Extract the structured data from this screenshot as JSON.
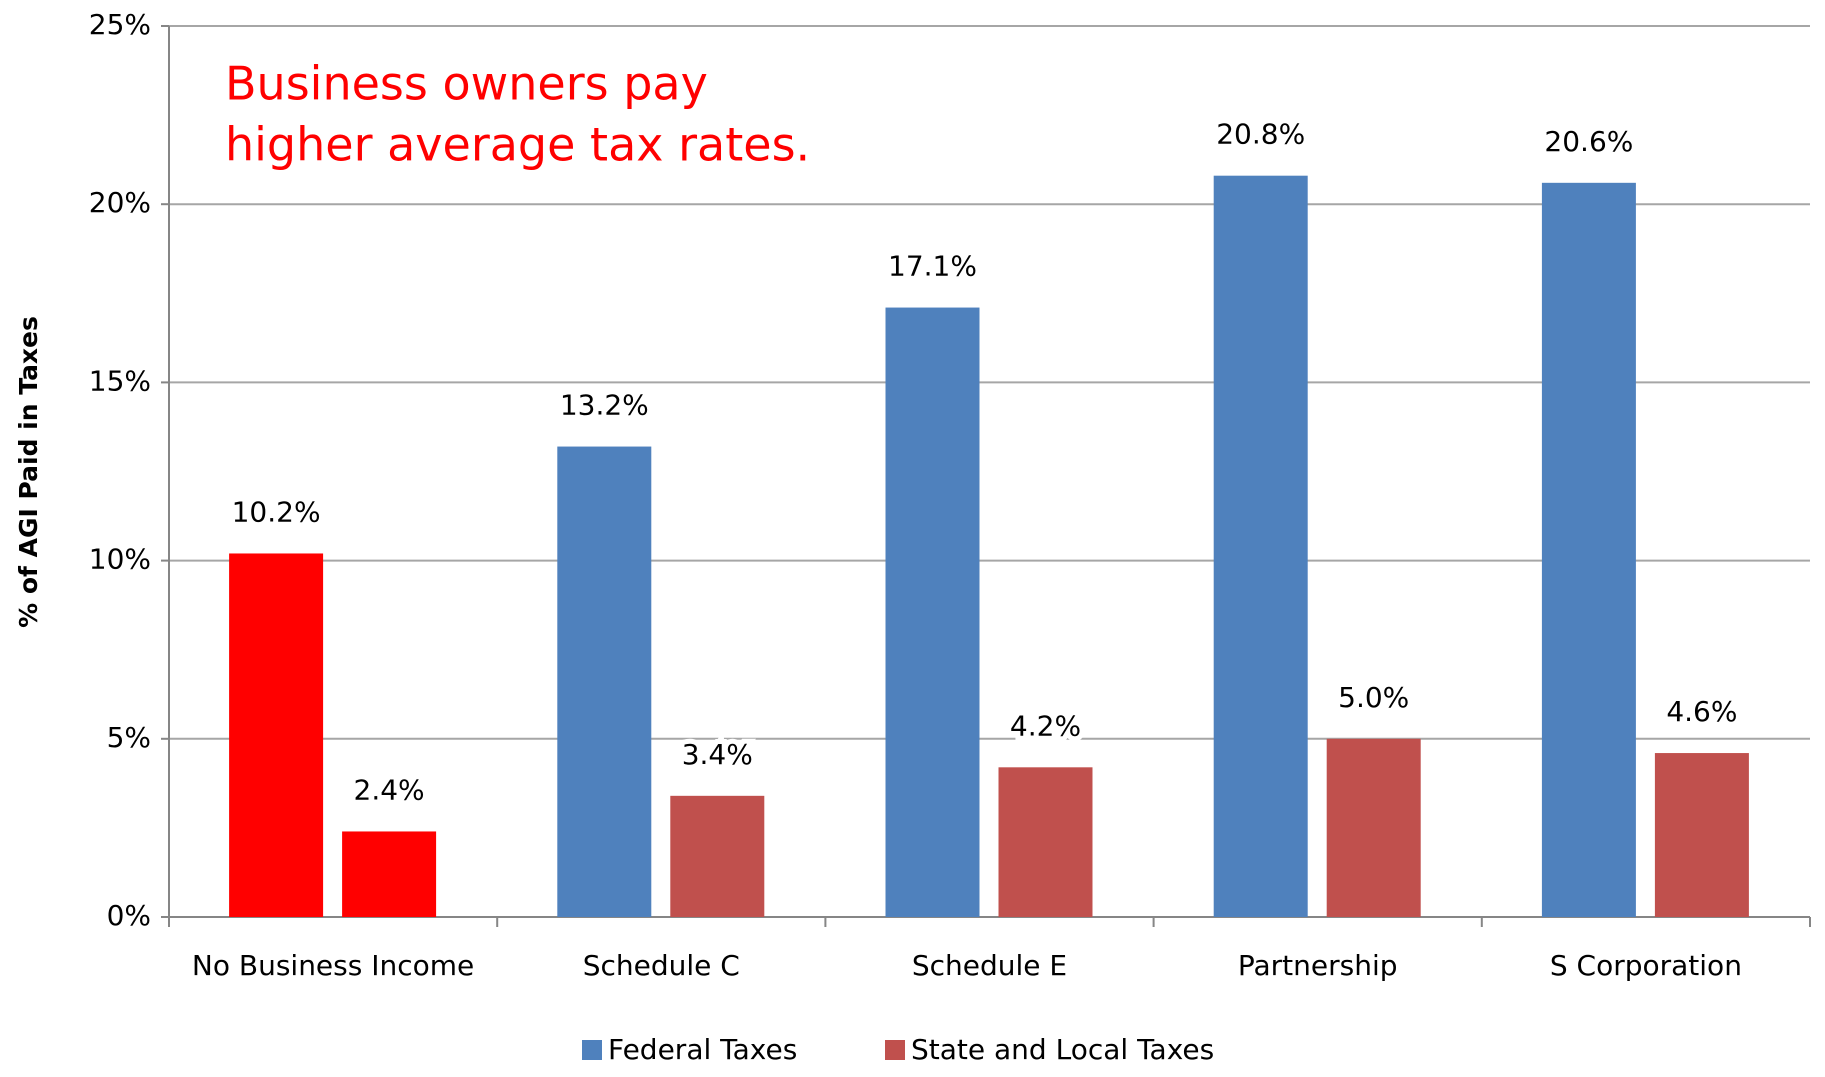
{
  "chart_data": {
    "type": "bar",
    "annotation": [
      "Business owners pay",
      "higher average tax rates."
    ],
    "annotation_color": "#ff0000",
    "y_label": "% of AGI Paid in Taxes",
    "categories": [
      "No Business Income",
      "Schedule C",
      "Schedule E",
      "Partnership",
      "S Corporation"
    ],
    "series": [
      {
        "name": "Federal Taxes",
        "color": "#4f81bd",
        "colors": [
          "#ff0000",
          "#4f81bd",
          "#4f81bd",
          "#4f81bd",
          "#4f81bd"
        ],
        "values": [
          10.2,
          13.2,
          17.1,
          20.8,
          20.6
        ],
        "value_labels": [
          "10.2%",
          "13.2%",
          "17.1%",
          "20.8%",
          "20.6%"
        ]
      },
      {
        "name": "State and Local Taxes",
        "color": "#c0504d",
        "colors": [
          "#ff0000",
          "#c0504d",
          "#c0504d",
          "#c0504d",
          "#c0504d"
        ],
        "values": [
          2.4,
          3.4,
          4.2,
          5.0,
          4.6
        ],
        "value_labels": [
          "2.4%",
          "3.4%",
          "4.2%",
          "5.0%",
          "4.6%"
        ]
      }
    ],
    "ylim": [
      0,
      25
    ],
    "yticks": [
      {
        "value": 0,
        "label": "0%"
      },
      {
        "value": 5,
        "label": "5%"
      },
      {
        "value": 10,
        "label": "10%"
      },
      {
        "value": 15,
        "label": "15%"
      },
      {
        "value": 20,
        "label": "20%"
      },
      {
        "value": 25,
        "label": "25%"
      }
    ],
    "grid": true,
    "legend": "bottom"
  }
}
